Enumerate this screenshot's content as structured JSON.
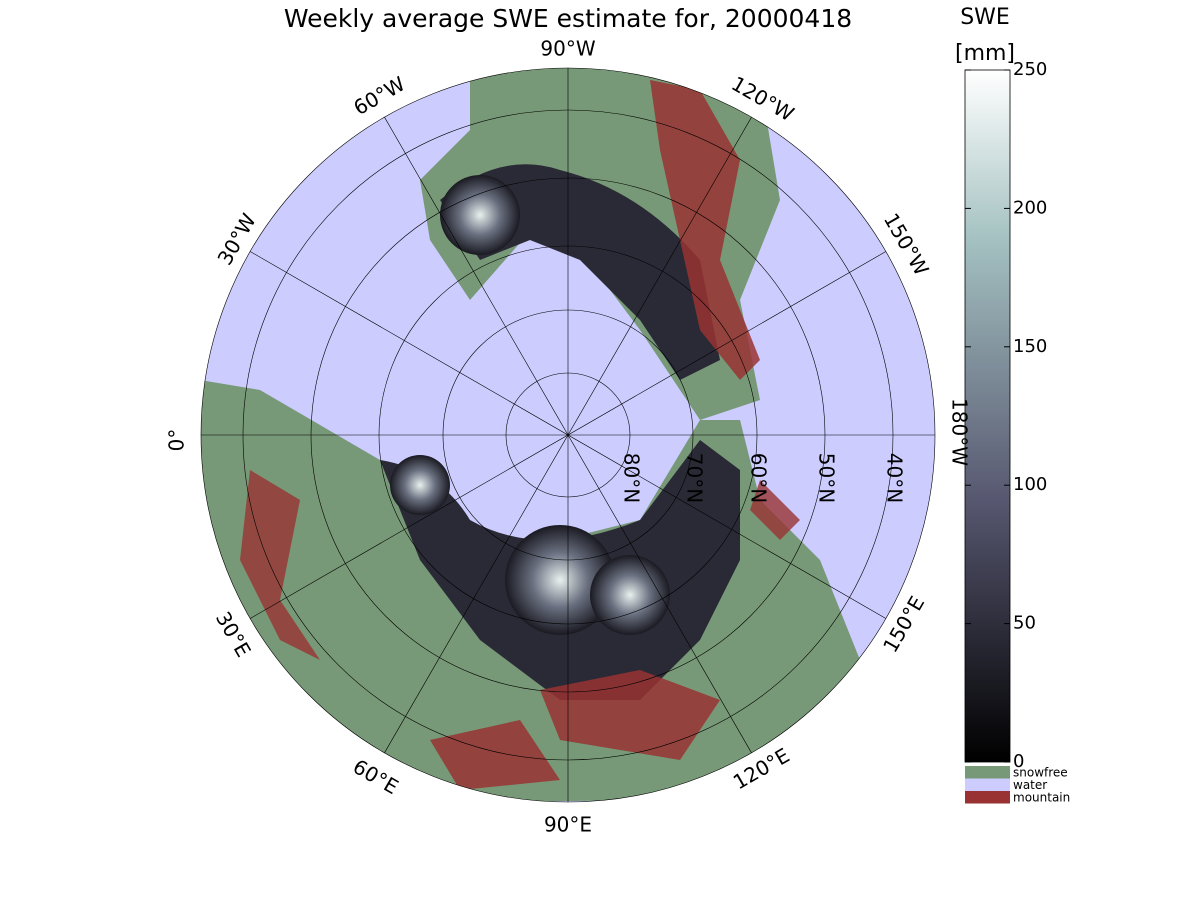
{
  "title": "Weekly average SWE estimate for, 20000418",
  "longitude_labels": [
    "90°W",
    "60°W",
    "120°W",
    "30°W",
    "150°W",
    "0°",
    "180°W",
    "30°E",
    "150°E",
    "60°E",
    "120°E",
    "90°E"
  ],
  "latitude_labels": [
    "80°N",
    "70°N",
    "60°N",
    "50°N",
    "40°N"
  ],
  "colorbar": {
    "title": "SWE",
    "unit": "[mm]",
    "lim": [
      0,
      250
    ],
    "ticks": [
      0,
      50,
      100,
      150,
      200,
      250
    ]
  },
  "legend": [
    {
      "name": "snowfree",
      "color": "#779977"
    },
    {
      "name": "water",
      "color": "#ccccff"
    },
    {
      "name": "mountain",
      "color": "#993333"
    }
  ]
}
